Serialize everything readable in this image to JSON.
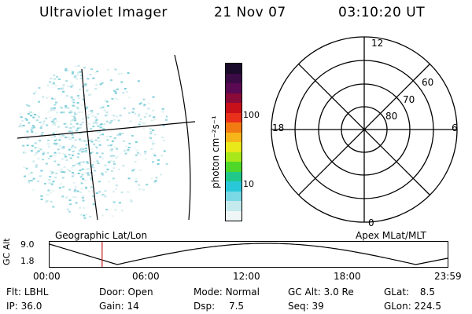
{
  "header": {
    "instrument": "Ultraviolet Imager",
    "date": "21 Nov 07",
    "time": "03:10:20 UT"
  },
  "colorbar": {
    "unit_label": "photon cm⁻²s⁻¹",
    "ticks": [
      "100",
      "10"
    ],
    "colors": [
      "#1b0b2a",
      "#3a0b45",
      "#5a0a52",
      "#8a0a3a",
      "#c8101a",
      "#e8301a",
      "#f27a12",
      "#f6b61a",
      "#e8e81a",
      "#a8e81a",
      "#4fd82a",
      "#20c88a",
      "#28c8d8",
      "#7ad8e4",
      "#c4eaee",
      "#eef6f6"
    ]
  },
  "left_panel": {
    "caption": "Geographic Lat/Lon"
  },
  "polar_panel": {
    "caption": "Apex MLat/MLT",
    "mlt_labels": [
      "12",
      "18",
      "6",
      "0"
    ],
    "lat_labels": [
      "60",
      "70",
      "80"
    ]
  },
  "timeline": {
    "ylabel": "GC Alt",
    "yticks": [
      "9.0",
      "1.8"
    ],
    "xticks": [
      "00:00",
      "06:00",
      "12:00",
      "18:00",
      "23:59"
    ],
    "marker_time_hours": 3.17
  },
  "status": [
    {
      "key": "Flt:",
      "value": "LBHL"
    },
    {
      "key": "Door:",
      "value": "Open"
    },
    {
      "key": "Mode:",
      "value": "Normal"
    },
    {
      "key": "GC Alt:",
      "value": "3.0 Re"
    },
    {
      "key": "GLat:",
      "value": "8.5"
    },
    {
      "key": "IP:",
      "value": "36.0"
    },
    {
      "key": "Gain:",
      "value": "14"
    },
    {
      "key": "Dsp:",
      "value": "7.5"
    },
    {
      "key": "Seq:",
      "value": "39"
    },
    {
      "key": "GLon:",
      "value": "224.5"
    }
  ]
}
